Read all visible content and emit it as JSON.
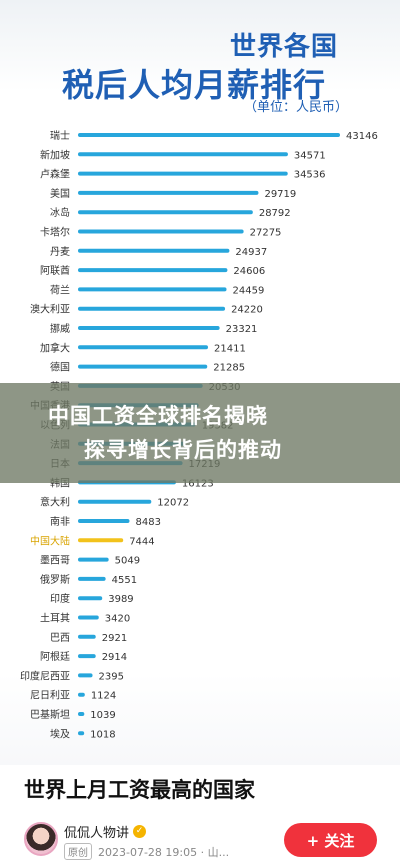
{
  "chart_data": {
    "type": "bar",
    "title": "世界各国",
    "subtitle": "税后人均月薪排行",
    "unit": "（单位：人民币）",
    "categories": [
      "瑞士",
      "新加坡",
      "卢森堡",
      "美国",
      "冰岛",
      "卡塔尔",
      "丹麦",
      "阿联酋",
      "荷兰",
      "澳大利亚",
      "挪威",
      "加拿大",
      "德国",
      "英国",
      "中国香港",
      "以色列",
      "法国",
      "日本",
      "韩国",
      "意大利",
      "南非",
      "中国大陆",
      "墨西哥",
      "俄罗斯",
      "印度",
      "土耳其",
      "巴西",
      "阿根廷",
      "印度尼西亚",
      "尼日利亚",
      "巴基斯坦",
      "埃及"
    ],
    "values": [
      43146,
      34571,
      34536,
      29719,
      28792,
      27275,
      24937,
      24606,
      24459,
      24220,
      23321,
      21411,
      21285,
      20530,
      19867,
      19382,
      17721,
      17219,
      16123,
      12072,
      8483,
      7444,
      5049,
      4551,
      3989,
      3420,
      2921,
      2914,
      2395,
      1124,
      1039,
      1018
    ],
    "value_labels": [
      "43146",
      "34571",
      "34536",
      "29719",
      "28792",
      "27275",
      "24937",
      "24606",
      "24459",
      "24220",
      "23321",
      "21411",
      "21285",
      "20530",
      "",
      "19382",
      "",
      "17219",
      "16123",
      "12072",
      "8483",
      "7444",
      "5049",
      "4551",
      "3989",
      "3420",
      "2921",
      "2914",
      "2395",
      "1124",
      "1039",
      "1018"
    ],
    "highlight_category": "中国大陆",
    "ylim": [
      0,
      43146
    ],
    "colors": {
      "bar": "#27a6dc",
      "highlight": "#f2c21b",
      "title": "#1f5fb4"
    }
  },
  "overlay": {
    "line1": "中国工资全球排名揭晓",
    "line2": "探寻增长背后的推动"
  },
  "footer": {
    "title": "世界上月工资最高的国家",
    "author": "侃侃人物讲",
    "original_tag": "原创",
    "meta": "2023-07-28 19:05 · 山...",
    "follow_label": "+ 关注",
    "verified_icon": "verified-badge-icon"
  }
}
